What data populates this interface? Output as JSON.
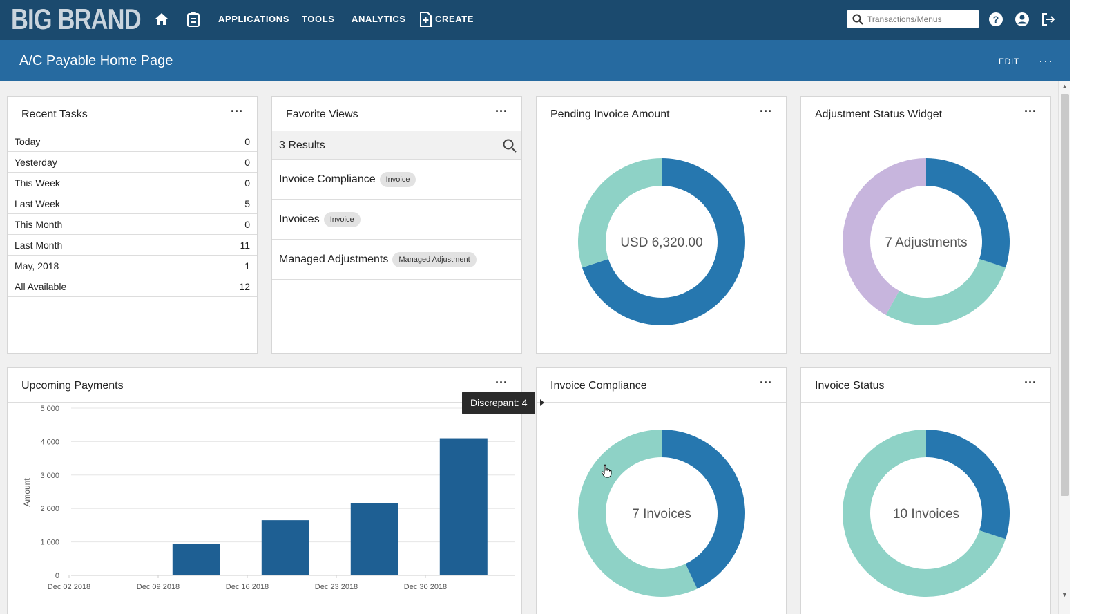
{
  "nav": {
    "brand": "BIG BRAND",
    "items": [
      "APPLICATIONS",
      "TOOLS",
      "ANALYTICS",
      "CREATE"
    ],
    "search_placeholder": "Transactions/Menus",
    "icons": [
      "home-icon",
      "clipboard-icon",
      "create-document-icon",
      "search-icon",
      "help-icon",
      "user-icon",
      "logout-icon"
    ]
  },
  "page": {
    "title": "A/C Payable Home Page",
    "edit_label": "EDIT",
    "more_label": "···"
  },
  "recent_tasks": {
    "title": "Recent Tasks",
    "rows": [
      {
        "label": "Today",
        "count": "0"
      },
      {
        "label": "Yesterday",
        "count": "0"
      },
      {
        "label": "This Week",
        "count": "0"
      },
      {
        "label": "Last Week",
        "count": "5"
      },
      {
        "label": "This Month",
        "count": "0"
      },
      {
        "label": "Last Month",
        "count": "11"
      },
      {
        "label": "May, 2018",
        "count": "1"
      },
      {
        "label": "All Available",
        "count": "12"
      }
    ]
  },
  "favorite_views": {
    "title": "Favorite Views",
    "results": "3 Results",
    "items": [
      {
        "label": "Invoice Compliance",
        "badge": "Invoice"
      },
      {
        "label": "Invoices",
        "badge": "Invoice"
      },
      {
        "label": "Managed Adjustments",
        "badge": "Managed Adjustment"
      }
    ]
  },
  "pending_invoice": {
    "title": "Pending Invoice Amount",
    "center": "USD 6,320.00",
    "segments": [
      {
        "value": 0.7,
        "color": "#2677af"
      },
      {
        "value": 0.3,
        "color": "#8ed2c6"
      }
    ]
  },
  "adjustment_status": {
    "title": "Adjustment Status Widget",
    "center": "7 Adjustments",
    "segments": [
      {
        "value": 0.3,
        "color": "#2677af"
      },
      {
        "value": 0.28,
        "color": "#8ed2c6"
      },
      {
        "value": 0.42,
        "color": "#c7b5dd"
      }
    ]
  },
  "upcoming_payments": {
    "title": "Upcoming Payments"
  },
  "invoice_compliance": {
    "title": "Invoice Compliance",
    "center": "7 Invoices",
    "segments": [
      {
        "value": 0.43,
        "color": "#2677af"
      },
      {
        "value": 0.57,
        "color": "#8ed2c6"
      }
    ]
  },
  "invoice_status": {
    "title": "Invoice Status",
    "center": "10 Invoices",
    "segments": [
      {
        "value": 0.3,
        "color": "#2677af"
      },
      {
        "value": 0.7,
        "color": "#8ed2c6"
      }
    ]
  },
  "tooltip": {
    "text": "Discrepant: 4"
  },
  "chart_data": {
    "type": "bar",
    "title": "Upcoming Payments",
    "ylabel": "Amount",
    "xlabel": "",
    "ylim": [
      0,
      5000
    ],
    "yticks": [
      "5 000",
      "4 000",
      "3 000",
      "2 000",
      "1 000",
      "0"
    ],
    "xticks": [
      "Dec 02 2018",
      "Dec 09 2018",
      "Dec 16 2018",
      "Dec 23 2018",
      "Dec 30 2018"
    ],
    "bar_color": "#1e5f93",
    "bars": [
      {
        "date": "Dec 12 2018",
        "value": 950
      },
      {
        "date": "Dec 19 2018",
        "value": 1650
      },
      {
        "date": "Dec 26 2018",
        "value": 2150
      },
      {
        "date": "Jan 02 2019",
        "value": 4100
      }
    ]
  }
}
